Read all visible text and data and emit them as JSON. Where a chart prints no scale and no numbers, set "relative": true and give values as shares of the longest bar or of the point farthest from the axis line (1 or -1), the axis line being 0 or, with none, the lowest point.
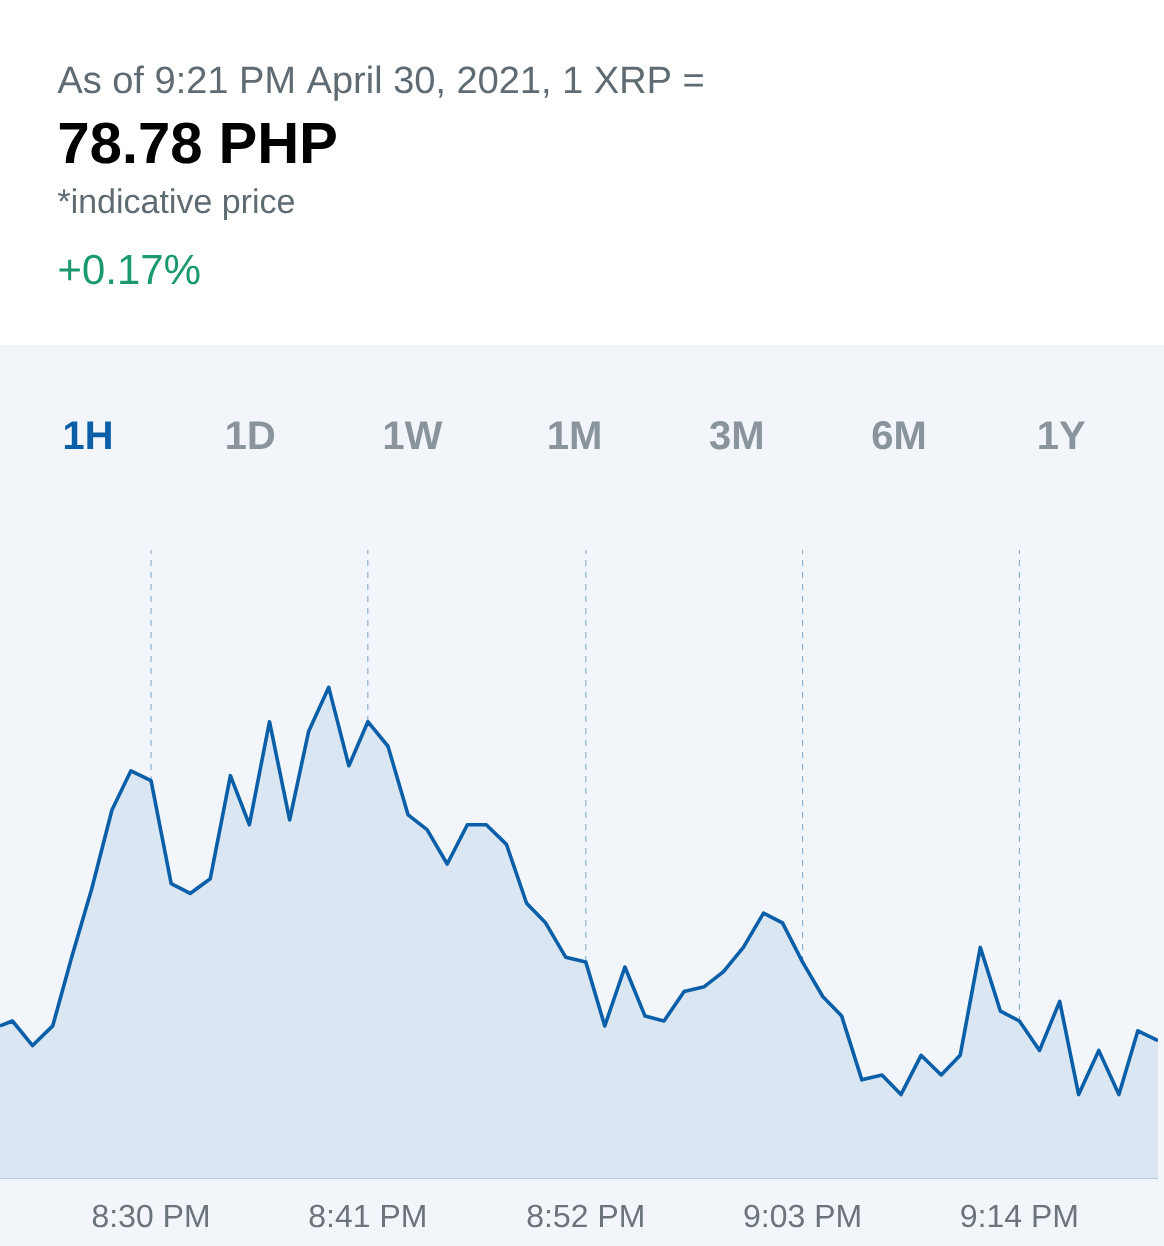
{
  "chart_data": {
    "type": "area",
    "title": "As of 9:21 PM April 30, 2021, 1 XRP =",
    "subtitle": "78.78 PHP",
    "annotations": [
      "*indicative price",
      "+0.17%",
      "1H",
      "1D",
      "1W",
      "1M",
      "3M",
      "6M",
      "1Y"
    ],
    "relative": true,
    "grid": "x",
    "line_style": "solid",
    "color": "#0a5fa8",
    "xlim": [
      20.3725,
      21.35
    ],
    "xticks": [
      {
        "value": 20.5,
        "label": "8:30 PM"
      },
      {
        "value": 20.683,
        "label": "8:41 PM"
      },
      {
        "value": 20.867,
        "label": "8:52 PM"
      },
      {
        "value": 21.05,
        "label": "9:03 PM"
      },
      {
        "value": 21.233,
        "label": "9:14 PM"
      }
    ],
    "x": [
      20.3725,
      20.383,
      20.4,
      20.417,
      20.433,
      20.45,
      20.467,
      20.483,
      20.5,
      20.517,
      20.533,
      20.55,
      20.567,
      20.583,
      20.6,
      20.617,
      20.633,
      20.65,
      20.667,
      20.683,
      20.7,
      20.717,
      20.733,
      20.75,
      20.767,
      20.783,
      20.8,
      20.817,
      20.833,
      20.85,
      20.867,
      20.883,
      20.9,
      20.917,
      20.933,
      20.95,
      20.967,
      20.983,
      21.0,
      21.017,
      21.033,
      21.05,
      21.067,
      21.083,
      21.1,
      21.117,
      21.133,
      21.15,
      21.167,
      21.183,
      21.2,
      21.217,
      21.233,
      21.25,
      21.267,
      21.283,
      21.3,
      21.317,
      21.333,
      21.35
    ],
    "values": [
      0.31,
      0.32,
      0.27,
      0.31,
      0.45,
      0.59,
      0.75,
      0.83,
      0.81,
      0.6,
      0.58,
      0.61,
      0.82,
      0.72,
      0.93,
      0.73,
      0.91,
      1,
      0.84,
      0.93,
      0.88,
      0.74,
      0.71,
      0.64,
      0.72,
      0.72,
      0.68,
      0.56,
      0.52,
      0.45,
      0.44,
      0.31,
      0.43,
      0.33,
      0.32,
      0.38,
      0.39,
      0.42,
      0.47,
      0.54,
      0.52,
      0.44,
      0.37,
      0.33,
      0.2,
      0.21,
      0.17,
      0.25,
      0.21,
      0.25,
      0.47,
      0.34,
      0.32,
      0.26,
      0.36,
      0.17,
      0.26,
      0.17,
      0.3,
      0.28
    ]
  }
}
